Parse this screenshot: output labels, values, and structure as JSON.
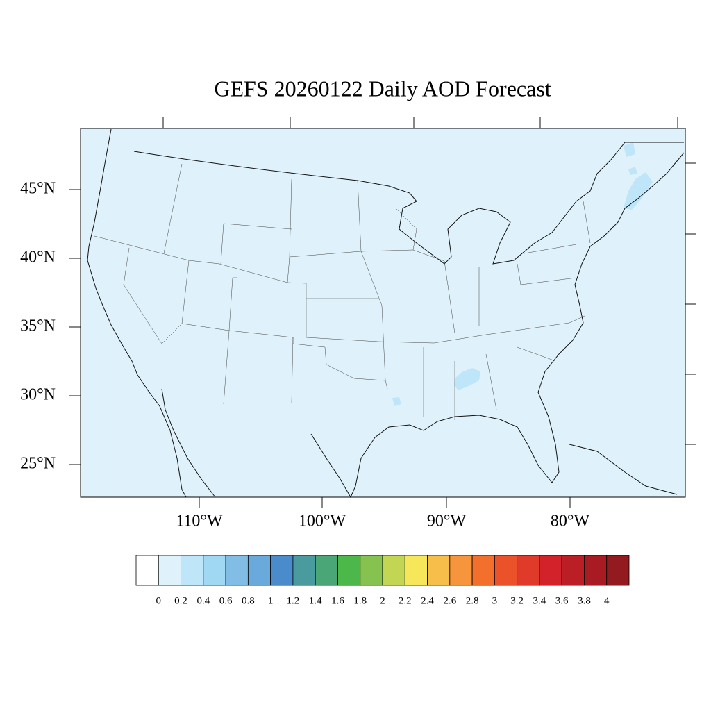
{
  "header": {
    "title": "GEFS 20260122 Daily AOD Forecast"
  },
  "map": {
    "lat_labels": [
      "45°N",
      "40°N",
      "35°N",
      "30°N",
      "25°N"
    ],
    "lon_labels": [
      "110°W",
      "100°W",
      "90°W",
      "80°W"
    ],
    "background_color": "#dff2fb",
    "plume_color": "#bfe6f8"
  },
  "colorbar": {
    "colors": [
      "#ffffff",
      "#dff2fb",
      "#bfe6f8",
      "#a0d8f4",
      "#82bde5",
      "#6aa9db",
      "#4a8ccb",
      "#4a9b9d",
      "#4aa676",
      "#4cb84a",
      "#86c24f",
      "#c3d653",
      "#f6e65a",
      "#f7be4a",
      "#f6953c",
      "#f36f2c",
      "#ec5229",
      "#e03a2a",
      "#d32229",
      "#bb1e24",
      "#a81b22",
      "#931a1e"
    ],
    "labels": [
      0,
      0.2,
      0.4,
      0.6,
      0.8,
      1,
      1.2,
      1.4,
      1.6,
      1.8,
      2,
      2.2,
      2.4,
      2.6,
      2.8,
      3,
      3.2,
      3.4,
      3.6,
      3.8,
      4
    ]
  }
}
